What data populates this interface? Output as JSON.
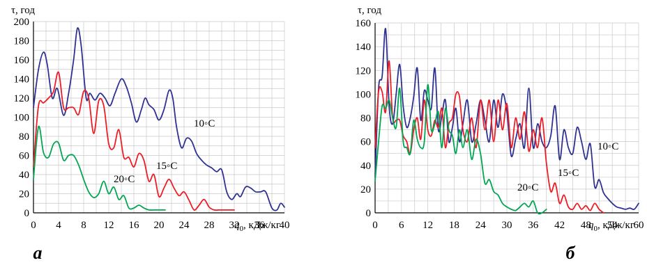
{
  "chart_data": [
    {
      "type": "line",
      "panel_label": "а",
      "ylabel": "τ, год",
      "xlabel_main": "q",
      "xlabel_sub": "0",
      "xlabel_rest": ", кДж/кг",
      "xlim": [
        0,
        40
      ],
      "ylim": [
        0,
        200
      ],
      "x_ticks": [
        "0",
        "4",
        "8",
        "12",
        "16",
        "20",
        "24",
        "28",
        "32",
        "36",
        "40"
      ],
      "y_ticks": [
        "0",
        "20",
        "40",
        "60",
        "80",
        "100",
        "120",
        "140",
        "160",
        "180",
        "200"
      ],
      "grid": true,
      "series": [
        {
          "name": "10◦С",
          "color": "#2e3192",
          "x": [
            0,
            0.8,
            1.6,
            2.2,
            3,
            3.8,
            4.8,
            5.6,
            6.4,
            7,
            7.6,
            8.4,
            9,
            9.8,
            10.6,
            11.4,
            12.2,
            13,
            14,
            14.8,
            15.6,
            16.4,
            17.2,
            17.8,
            18.4,
            19.2,
            20,
            20.8,
            21.6,
            22.2,
            22.8,
            23.6,
            24.4,
            25.2,
            26,
            26.8,
            27.6,
            28.4,
            29.2,
            30,
            30.8,
            31.6,
            32.4,
            33,
            33.8,
            34.6,
            35.4,
            36.2,
            37,
            38,
            38.8,
            39.4,
            40
          ],
          "y": [
            110,
            150,
            168,
            155,
            120,
            130,
            102,
            125,
            160,
            193,
            175,
            120,
            125,
            118,
            125,
            120,
            112,
            125,
            140,
            132,
            115,
            95,
            108,
            120,
            113,
            108,
            97,
            108,
            128,
            120,
            90,
            68,
            78,
            75,
            62,
            55,
            50,
            47,
            43,
            45,
            22,
            14,
            20,
            17,
            27,
            26,
            22,
            22,
            22,
            5,
            3,
            10,
            6
          ]
        },
        {
          "name": "15◦С",
          "color": "#ee1c25",
          "x": [
            0,
            0.8,
            1.6,
            2.4,
            3.2,
            4,
            4.8,
            5.6,
            6.4,
            7.2,
            8,
            8.8,
            9.6,
            10.4,
            11.2,
            12,
            12.8,
            13.6,
            14.4,
            15.2,
            16,
            16.8,
            17.6,
            18.4,
            19.2,
            20,
            20.8,
            21.6,
            22.4,
            23.2,
            24,
            24.8,
            25.6,
            26.4,
            27.2,
            28,
            28.8,
            29.6,
            30.4,
            31.2,
            32
          ],
          "y": [
            48,
            112,
            115,
            120,
            127,
            147,
            110,
            110,
            110,
            103,
            127,
            120,
            83,
            117,
            112,
            72,
            68,
            87,
            58,
            58,
            48,
            62,
            55,
            33,
            40,
            17,
            26,
            35,
            26,
            18,
            22,
            13,
            3,
            8,
            14,
            6,
            3,
            3,
            3,
            3,
            3
          ]
        },
        {
          "name": "20◦С",
          "color": "#00a651",
          "x": [
            0,
            0.8,
            1.6,
            2.4,
            3.2,
            4,
            4.8,
            5.6,
            6.4,
            7.2,
            8,
            8.8,
            9.6,
            10.4,
            11.2,
            12,
            12.8,
            13.6,
            14.4,
            15.2,
            16,
            16.8,
            17.6,
            18.4,
            19.2,
            20,
            21
          ],
          "y": [
            35,
            90,
            63,
            58,
            72,
            73,
            55,
            60,
            60,
            50,
            35,
            22,
            16,
            20,
            33,
            20,
            27,
            14,
            18,
            5,
            5,
            8,
            5,
            3,
            3,
            3,
            3
          ]
        }
      ],
      "annotations": [
        "10◦С",
        "15◦С",
        "20◦С"
      ]
    },
    {
      "type": "line",
      "panel_label": "б",
      "ylabel": "τ, год",
      "xlabel_main": "q",
      "xlabel_sub": "0",
      "xlabel_rest": ", кДж/кг",
      "xlim": [
        0,
        60
      ],
      "ylim": [
        0,
        160
      ],
      "x_ticks": [
        "0",
        "6",
        "12",
        "18",
        "24",
        "30",
        "36",
        "42",
        "48",
        "54",
        "60"
      ],
      "y_ticks": [
        "0",
        "20",
        "40",
        "60",
        "80",
        "100",
        "120",
        "140",
        "160"
      ],
      "grid": true,
      "series": [
        {
          "name": "10◦С",
          "color": "#2e3192",
          "x": [
            0,
            0.8,
            1.6,
            2.4,
            3.2,
            4,
            4.8,
            5.6,
            6.4,
            7.2,
            8,
            8.8,
            9.6,
            10.4,
            11.2,
            12,
            12.8,
            13.6,
            14.4,
            15.2,
            16,
            16.8,
            17.6,
            18.4,
            19.2,
            20,
            21,
            22,
            23,
            24,
            25,
            26,
            27,
            28,
            29,
            30,
            31,
            32,
            33,
            34,
            35,
            36,
            37,
            38,
            39,
            40,
            41,
            42,
            43,
            44,
            45,
            46,
            47,
            48,
            49,
            50,
            51,
            52,
            53,
            54,
            55,
            56,
            57,
            58,
            59,
            60
          ],
          "y": [
            30,
            105,
            115,
            155,
            90,
            75,
            100,
            125,
            90,
            72,
            80,
            98,
            122,
            78,
            103,
            95,
            88,
            122,
            70,
            82,
            95,
            60,
            72,
            88,
            60,
            75,
            95,
            60,
            75,
            95,
            78,
            60,
            95,
            72,
            100,
            85,
            48,
            62,
            75,
            55,
            105,
            55,
            75,
            60,
            55,
            65,
            90,
            45,
            70,
            55,
            50,
            72,
            60,
            45,
            58,
            22,
            28,
            17,
            12,
            8,
            5,
            4,
            3,
            4,
            3,
            8
          ]
        },
        {
          "name": "15◦С",
          "color": "#ee1c25",
          "x": [
            0,
            0.8,
            1.6,
            2.4,
            3.2,
            4,
            4.8,
            5.6,
            6.4,
            7.2,
            8,
            8.8,
            9.6,
            10.4,
            11.2,
            12,
            12.8,
            13.6,
            14.4,
            15.2,
            16,
            16.8,
            17.6,
            18.4,
            19.2,
            20,
            21,
            22,
            23,
            24,
            25,
            26,
            27,
            28,
            29,
            30,
            31,
            32,
            33,
            34,
            35,
            36,
            37,
            38,
            39,
            40,
            41,
            42,
            43,
            44,
            45,
            46,
            47,
            48,
            49,
            50,
            51,
            52
          ],
          "y": [
            55,
            102,
            102,
            85,
            128,
            80,
            78,
            78,
            65,
            60,
            50,
            70,
            80,
            62,
            95,
            70,
            65,
            78,
            72,
            88,
            55,
            75,
            80,
            100,
            98,
            70,
            60,
            80,
            55,
            95,
            70,
            95,
            60,
            95,
            70,
            92,
            55,
            80,
            62,
            85,
            52,
            70,
            55,
            80,
            42,
            18,
            25,
            8,
            15,
            5,
            3,
            8,
            3,
            6,
            2,
            8,
            3,
            0
          ]
        },
        {
          "name": "20◦С",
          "color": "#00a651",
          "x": [
            0,
            0.8,
            1.6,
            2.4,
            3.2,
            4,
            4.8,
            5.6,
            6.4,
            7.2,
            8,
            8.8,
            9.6,
            10.4,
            11.2,
            12,
            12.8,
            13.6,
            14.4,
            15.2,
            16,
            16.8,
            17.6,
            18.4,
            19.2,
            20,
            21,
            22,
            23,
            24,
            25,
            26,
            27,
            28,
            29,
            30,
            31,
            32,
            33,
            34,
            35,
            36,
            37,
            38,
            39
          ],
          "y": [
            27,
            60,
            90,
            88,
            95,
            80,
            72,
            105,
            60,
            55,
            50,
            78,
            62,
            55,
            60,
            108,
            70,
            75,
            85,
            55,
            88,
            70,
            65,
            50,
            70,
            55,
            70,
            45,
            62,
            50,
            25,
            28,
            18,
            15,
            8,
            5,
            3,
            2,
            5,
            8,
            5,
            10,
            0,
            0,
            3
          ]
        }
      ],
      "annotations": [
        "10◦С",
        "15◦С",
        "20◦С"
      ]
    }
  ]
}
